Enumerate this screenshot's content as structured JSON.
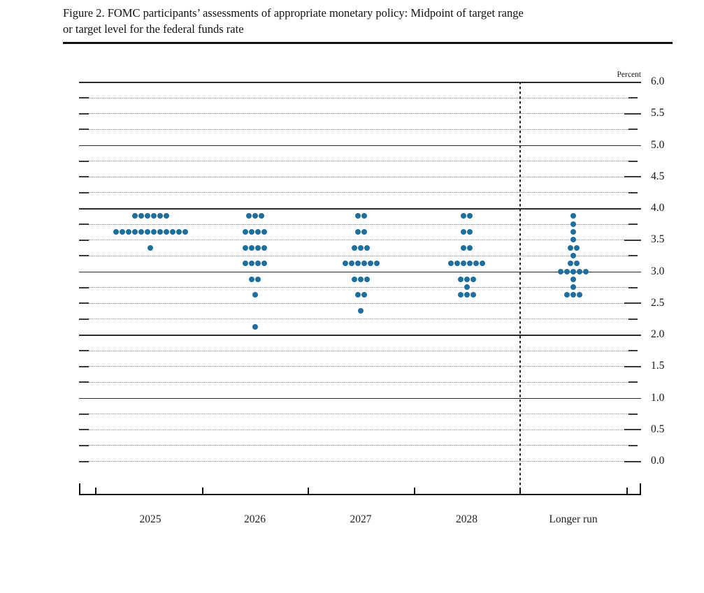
{
  "title": {
    "line1": "Figure 2. FOMC participants’ assessments of appropriate monetary policy: Midpoint of target range",
    "line2": "or target level for the federal funds rate"
  },
  "y_axis": {
    "unit_label": "Percent",
    "tick_labels": [
      {
        "value": 6.0,
        "label": "6.0"
      },
      {
        "value": 5.5,
        "label": "5.5"
      },
      {
        "value": 5.0,
        "label": "5.0"
      },
      {
        "value": 4.5,
        "label": "4.5"
      },
      {
        "value": 4.0,
        "label": "4.0"
      },
      {
        "value": 3.5,
        "label": "3.5"
      },
      {
        "value": 3.0,
        "label": "3.0"
      },
      {
        "value": 2.5,
        "label": "2.5"
      },
      {
        "value": 2.0,
        "label": "2.0"
      },
      {
        "value": 1.5,
        "label": "1.5"
      },
      {
        "value": 1.0,
        "label": "1.0"
      },
      {
        "value": 0.5,
        "label": "0.5"
      },
      {
        "value": 0.0,
        "label": "0.0"
      }
    ]
  },
  "chart_data": {
    "type": "scatter",
    "title": "FOMC participants’ assessments of appropriate monetary policy: Midpoint of target range or target level for the federal funds rate",
    "ylabel": "Percent",
    "ylim": [
      0.0,
      6.0
    ],
    "y_label_step": 0.5,
    "y_minor_step": 0.25,
    "grid": "dotted minor, solid at integers",
    "legend_position": "none",
    "dot_color": "#1e6f9e",
    "categories": [
      "2025",
      "2026",
      "2027",
      "2028",
      "Longer run"
    ],
    "series": [
      {
        "name": "2025",
        "points": [
          {
            "rate": 3.875,
            "count": 6
          },
          {
            "rate": 3.625,
            "count": 12
          },
          {
            "rate": 3.375,
            "count": 1
          }
        ]
      },
      {
        "name": "2026",
        "points": [
          {
            "rate": 3.875,
            "count": 3
          },
          {
            "rate": 3.625,
            "count": 4
          },
          {
            "rate": 3.375,
            "count": 4
          },
          {
            "rate": 3.125,
            "count": 4
          },
          {
            "rate": 2.875,
            "count": 2
          },
          {
            "rate": 2.625,
            "count": 1
          },
          {
            "rate": 2.125,
            "count": 1
          }
        ]
      },
      {
        "name": "2027",
        "points": [
          {
            "rate": 3.875,
            "count": 2
          },
          {
            "rate": 3.625,
            "count": 2
          },
          {
            "rate": 3.375,
            "count": 3
          },
          {
            "rate": 3.125,
            "count": 6
          },
          {
            "rate": 2.875,
            "count": 3
          },
          {
            "rate": 2.625,
            "count": 2
          },
          {
            "rate": 2.375,
            "count": 1
          }
        ]
      },
      {
        "name": "2028",
        "points": [
          {
            "rate": 3.875,
            "count": 2
          },
          {
            "rate": 3.625,
            "count": 2
          },
          {
            "rate": 3.375,
            "count": 2
          },
          {
            "rate": 3.125,
            "count": 6
          },
          {
            "rate": 2.875,
            "count": 3
          },
          {
            "rate": 2.75,
            "count": 1
          },
          {
            "rate": 2.625,
            "count": 3
          }
        ]
      },
      {
        "name": "Longer run",
        "points": [
          {
            "rate": 3.875,
            "count": 1
          },
          {
            "rate": 3.75,
            "count": 1
          },
          {
            "rate": 3.625,
            "count": 1
          },
          {
            "rate": 3.5,
            "count": 1
          },
          {
            "rate": 3.375,
            "count": 2
          },
          {
            "rate": 3.25,
            "count": 1
          },
          {
            "rate": 3.125,
            "count": 2
          },
          {
            "rate": 3.0,
            "count": 5
          },
          {
            "rate": 2.875,
            "count": 1
          },
          {
            "rate": 2.75,
            "count": 1
          },
          {
            "rate": 2.625,
            "count": 3
          }
        ]
      }
    ]
  }
}
